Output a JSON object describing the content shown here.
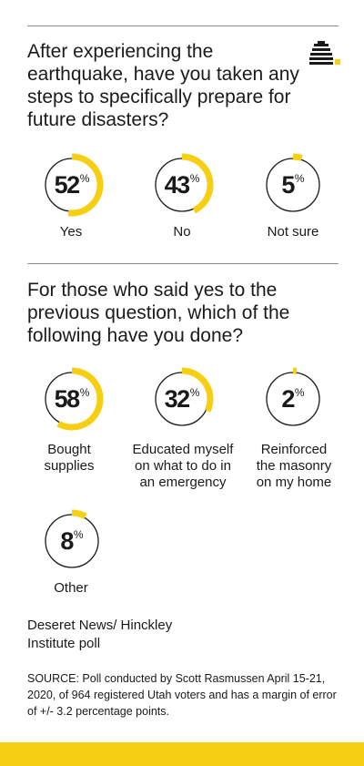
{
  "colors": {
    "accent": "#f7cf12",
    "track": "#1a1a1a",
    "text": "#1a1a1a",
    "rule": "#8c8c8c"
  },
  "logo": {
    "icon": "beehive-icon"
  },
  "question1": "After experiencing the earthquake, have you taken any steps to specifically prepare for future disasters?",
  "question2": "For those who said yes to the previous question, which of the following have you done?",
  "percent_sign": "%",
  "chart_data": [
    {
      "type": "donut",
      "title": "After experiencing the earthquake, have you taken any steps to specifically prepare for future disasters?",
      "unit": "%",
      "categories": [
        "Yes",
        "No",
        "Not sure"
      ],
      "values": [
        52,
        43,
        5
      ]
    },
    {
      "type": "donut",
      "title": "For those who said yes to the previous question, which of the following have you done?",
      "unit": "%",
      "categories": [
        "Bought supplies",
        "Educated myself on what to do in an emergency",
        "Reinforced the masonry on my home",
        "Other"
      ],
      "values": [
        58,
        32,
        2,
        8
      ]
    }
  ],
  "source": {
    "name": "Deseret News/ Hinckley Institute poll",
    "note": "SOURCE: Poll conducted by Scott Rasmussen April 15-21, 2020, of 964 registered Utah voters and has a margin of error of +/- 3.2 percentage points."
  }
}
